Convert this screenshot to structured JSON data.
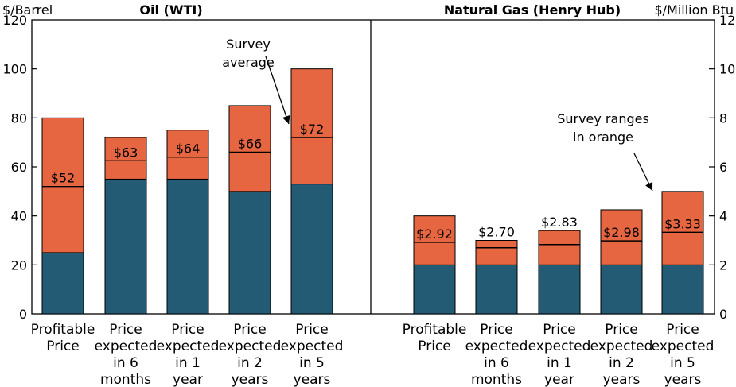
{
  "chart_data": [
    {
      "type": "bar",
      "subtype": "stacked-range",
      "title": "Oil (WTI)",
      "unit_label": "$/Barrel",
      "ylim": [
        0,
        120
      ],
      "yticks": [
        "0",
        "20",
        "40",
        "60",
        "80",
        "100",
        "120"
      ],
      "axis_side": "left",
      "categories": [
        [
          "Profitable",
          "Price"
        ],
        [
          "Price",
          "expected",
          "in 6",
          "months"
        ],
        [
          "Price",
          "expected",
          "in 1",
          "year"
        ],
        [
          "Price",
          "expected",
          "in 2",
          "years"
        ],
        [
          "Price",
          "expected",
          "in 5",
          "years"
        ]
      ],
      "range_low": [
        25,
        55,
        55,
        50,
        53
      ],
      "range_high": [
        80,
        72,
        75,
        85,
        100
      ],
      "survey_average": [
        52,
        62.5,
        64,
        66,
        72
      ],
      "average_labels": [
        "$52",
        "$63",
        "$64",
        "$66",
        "$72"
      ],
      "annotation": [
        "Survey",
        "average"
      ]
    },
    {
      "type": "bar",
      "subtype": "stacked-range",
      "title": "Natural Gas (Henry Hub)",
      "unit_label": "$/Million Btu",
      "ylim": [
        0,
        12
      ],
      "yticks": [
        "0",
        "2",
        "4",
        "6",
        "8",
        "10",
        "12"
      ],
      "axis_side": "right",
      "categories": [
        [
          "Profitable",
          "Price"
        ],
        [
          "Price",
          "expected",
          "in 6",
          "months"
        ],
        [
          "Price",
          "expected",
          "in 1",
          "year"
        ],
        [
          "Price",
          "expected",
          "in 2",
          "years"
        ],
        [
          "Price",
          "expected",
          "in 5",
          "years"
        ]
      ],
      "range_low": [
        2.0,
        2.0,
        2.0,
        2.0,
        2.0
      ],
      "range_high": [
        4.0,
        3.0,
        3.4,
        4.25,
        5.0
      ],
      "survey_average": [
        2.92,
        2.7,
        2.83,
        2.98,
        3.33
      ],
      "average_labels": [
        "$2.92",
        "$2.70",
        "$2.83",
        "$2.98",
        "$3.33"
      ],
      "annotation": [
        "Survey ranges",
        "in orange"
      ]
    }
  ],
  "colors": {
    "range": "#E56641",
    "low_base": "#235B75",
    "outline": "#000000"
  }
}
